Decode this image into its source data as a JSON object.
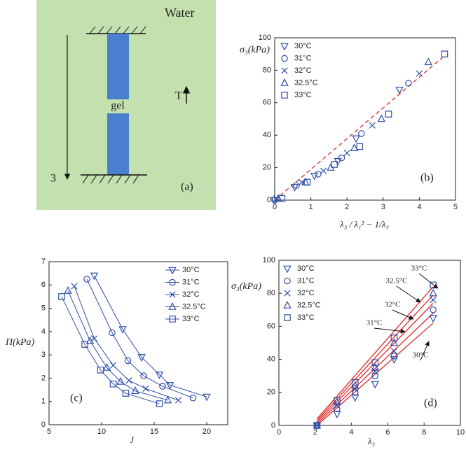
{
  "diagram": {
    "water_label": "Water",
    "gel_label": "gel",
    "temperature_label": "T",
    "axis_label": "3",
    "panel_label": "(a)"
  },
  "chart_data": [
    {
      "type": "scatter",
      "panel_label": "(b)",
      "x_label": "λ₃ / λ₁² − 1/λ₃",
      "y_label": "σ₃(kPa)",
      "xlim": [
        0,
        5
      ],
      "xticks": [
        0,
        1,
        2,
        3,
        4,
        5
      ],
      "ylim": [
        0,
        100
      ],
      "yticks": [
        0,
        20,
        40,
        60,
        80,
        100
      ],
      "legend": "upper left",
      "series": [
        {
          "name": "30°C",
          "color": "#2f4fa8",
          "marker": "triangle-down",
          "x": [
            0.0,
            0.55,
            1.1,
            1.75,
            2.25,
            3.45
          ],
          "values": [
            0,
            8,
            15,
            24,
            38,
            68
          ]
        },
        {
          "name": "31°C",
          "color": "#2f4fa8",
          "marker": "circle",
          "x": [
            0.0,
            0.6,
            1.2,
            1.85,
            2.4,
            3.7
          ],
          "values": [
            0,
            9,
            16,
            26,
            41,
            72
          ]
        },
        {
          "name": "32°C",
          "color": "#2f4fa8",
          "marker": "x",
          "x": [
            0.05,
            0.75,
            1.35,
            2.0,
            2.7,
            4.0
          ],
          "values": [
            1,
            11,
            18,
            29,
            46,
            78
          ]
        },
        {
          "name": "32.5°C",
          "color": "#2f4fa8",
          "marker": "triangle-up",
          "x": [
            0.1,
            0.85,
            1.55,
            2.2,
            2.95,
            4.25
          ],
          "values": [
            1,
            11,
            20,
            32,
            50,
            85
          ]
        },
        {
          "name": "33°C",
          "color": "#2f4fa8",
          "marker": "square",
          "x": [
            0.2,
            0.9,
            1.65,
            2.35,
            3.15,
            4.7
          ],
          "values": [
            1,
            11,
            22,
            33,
            53,
            90
          ]
        }
      ],
      "fit_lines": [
        {
          "x": [
            0,
            4.7
          ],
          "values": [
            0,
            89
          ],
          "color": "#e02828",
          "dashed": true
        }
      ]
    },
    {
      "type": "line",
      "panel_label": "(c)",
      "x_label": "J",
      "y_label": "Π(kPa)",
      "xlim": [
        5,
        22
      ],
      "xticks": [
        5,
        10,
        15,
        20
      ],
      "ylim": [
        0,
        7
      ],
      "yticks": [
        0,
        1,
        2,
        3,
        4,
        5,
        6,
        7
      ],
      "legend": "upper right",
      "series": [
        {
          "name": "30°C",
          "color": "#2f4fa8",
          "marker": "triangle-down",
          "x": [
            9.3,
            12,
            13.8,
            15.5,
            16.5,
            20
          ],
          "values": [
            6.4,
            4.1,
            2.9,
            2.15,
            1.7,
            1.2
          ]
        },
        {
          "name": "31°C",
          "color": "#2f4fa8",
          "marker": "circle",
          "x": [
            8.6,
            11,
            12.5,
            14,
            15.8,
            18.7
          ],
          "values": [
            6.25,
            3.95,
            2.75,
            2.1,
            1.65,
            1.15
          ]
        },
        {
          "name": "32°C",
          "color": "#2f4fa8",
          "marker": "x",
          "x": [
            7.4,
            9.3,
            11.1,
            12.6,
            14.2,
            17.3
          ],
          "values": [
            5.95,
            3.7,
            2.55,
            1.9,
            1.55,
            1.05
          ]
        },
        {
          "name": "32.5°C",
          "color": "#2f4fa8",
          "marker": "triangle-up",
          "x": [
            6.8,
            8.9,
            10.5,
            11.8,
            13.2,
            16.3
          ],
          "values": [
            5.75,
            3.6,
            2.45,
            1.85,
            1.45,
            1.05
          ]
        },
        {
          "name": "33°C",
          "color": "#2f4fa8",
          "marker": "square",
          "x": [
            6.2,
            8.4,
            9.9,
            11.1,
            12.3,
            15.5
          ],
          "values": [
            5.5,
            3.45,
            2.35,
            1.75,
            1.35,
            0.9
          ]
        }
      ]
    },
    {
      "type": "scatter",
      "panel_label": "(d)",
      "x_label": "λ₃",
      "y_label": "σ₃(kPa)",
      "xlim": [
        0,
        10
      ],
      "xticks": [
        0,
        2,
        4,
        6,
        8,
        10
      ],
      "ylim": [
        0,
        100
      ],
      "yticks": [
        0,
        20,
        40,
        60,
        80,
        100
      ],
      "legend": "upper left",
      "series": [
        {
          "name": "30°C",
          "color": "#2f4fa8",
          "marker": "triangle-down",
          "x": [
            2.1,
            3.2,
            4.2,
            5.3,
            6.35,
            8.5
          ],
          "values": [
            0,
            7,
            17,
            25,
            40,
            65
          ]
        },
        {
          "name": "31°C",
          "color": "#2f4fa8",
          "marker": "circle",
          "x": [
            2.1,
            3.2,
            4.2,
            5.3,
            6.35,
            8.5
          ],
          "values": [
            0,
            10,
            20,
            30,
            42,
            70
          ]
        },
        {
          "name": "32°C",
          "color": "#2f4fa8",
          "marker": "x",
          "x": [
            2.1,
            3.2,
            4.2,
            5.3,
            6.35,
            8.5
          ],
          "values": [
            0,
            12,
            22,
            33,
            45,
            76
          ]
        },
        {
          "name": "32.5°C",
          "color": "#2f4fa8",
          "marker": "triangle-up",
          "x": [
            2.1,
            3.2,
            4.2,
            5.3,
            6.35,
            8.5
          ],
          "values": [
            0,
            14,
            24,
            35,
            50,
            80
          ]
        },
        {
          "name": "33°C",
          "color": "#2f4fa8",
          "marker": "square",
          "x": [
            2.1,
            3.2,
            4.2,
            5.3,
            6.35,
            8.5
          ],
          "values": [
            0,
            15,
            26,
            38,
            53,
            85
          ]
        }
      ],
      "fit_lines": [
        {
          "x": [
            2.1,
            8.5
          ],
          "values": [
            0,
            62
          ],
          "color": "#e02828",
          "dashed": false
        },
        {
          "x": [
            2.1,
            8.5
          ],
          "values": [
            1,
            68
          ],
          "color": "#e02828",
          "dashed": false
        },
        {
          "x": [
            2.1,
            8.5
          ],
          "values": [
            2,
            74
          ],
          "color": "#e02828",
          "dashed": false
        },
        {
          "x": [
            2.1,
            8.5
          ],
          "values": [
            3,
            79
          ],
          "color": "#e02828",
          "dashed": false
        },
        {
          "x": [
            2.1,
            8.5
          ],
          "values": [
            4,
            84
          ],
          "color": "#e02828",
          "dashed": false
        }
      ],
      "annotations": [
        "33°C",
        "32.5°C",
        "32°C",
        "31°C",
        "30°C"
      ]
    }
  ]
}
